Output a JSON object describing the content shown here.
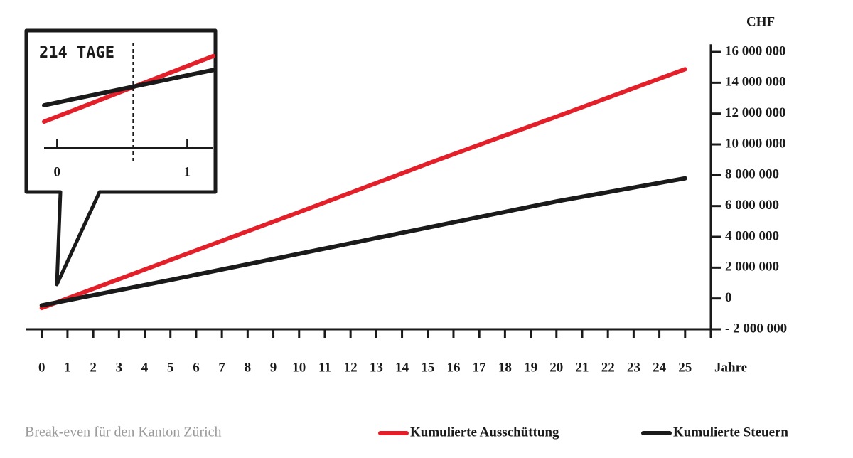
{
  "chart_data": [
    {
      "type": "line",
      "caption": "Break-even für den Kanton Zürich",
      "y_unit": "CHF",
      "xlabel": "Jahre",
      "x": [
        0,
        5,
        10,
        15,
        20,
        25
      ],
      "xlim": [
        -0.6,
        26
      ],
      "xticks": [
        0,
        1,
        2,
        3,
        4,
        5,
        6,
        7,
        8,
        9,
        10,
        11,
        12,
        13,
        14,
        15,
        16,
        17,
        18,
        19,
        20,
        21,
        22,
        23,
        24,
        25
      ],
      "ylim": [
        -2000000,
        16500000
      ],
      "yticks": [
        {
          "value": 16000000,
          "label": "16 000 000"
        },
        {
          "value": 14000000,
          "label": "14 000 000"
        },
        {
          "value": 12000000,
          "label": "12 000 000"
        },
        {
          "value": 10000000,
          "label": "10 000 000"
        },
        {
          "value": 8000000,
          "label": "8 000 000"
        },
        {
          "value": 6000000,
          "label": "6 000 000"
        },
        {
          "value": 4000000,
          "label": "4 000 000"
        },
        {
          "value": 2000000,
          "label": "2 000 000"
        },
        0,
        {
          "value": -2000000,
          "label": "- 2 000 000"
        }
      ],
      "legend": "bottom-right",
      "series": [
        {
          "name": "Kumulierte Ausschüttung",
          "color": "#e3202a",
          "values": [
            -620000,
            2500000,
            5600000,
            8750000,
            11800000,
            14880000
          ]
        },
        {
          "name": "Kumulierte Steuern",
          "color": "#1a1a1a",
          "values": [
            -450000,
            1200000,
            2900000,
            4600000,
            6300000,
            7800000
          ]
        }
      ]
    },
    {
      "type": "line",
      "annotation": "214 TAGE",
      "marker_x": 0.586,
      "x": [
        -0.1,
        1.2
      ],
      "xlim": [
        -0.1,
        1.2
      ],
      "xticks": [
        0,
        1
      ],
      "ylim": [
        -1000000,
        300000
      ],
      "series": [
        {
          "color": "#e3202a",
          "values": [
            -680000,
            120000
          ]
        },
        {
          "color": "#1a1a1a",
          "values": [
            -480000,
            -50000
          ]
        }
      ]
    }
  ]
}
